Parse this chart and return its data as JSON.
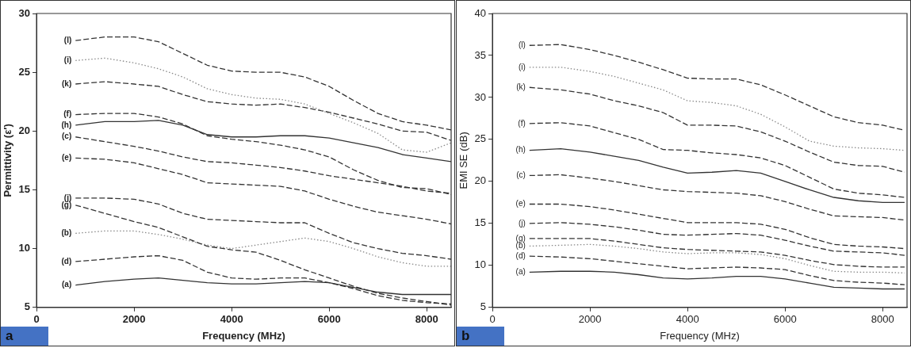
{
  "chart_data": [
    {
      "type": "line",
      "xlabel": "Frequency (MHz)",
      "ylabel": "Permittivity (ε′)",
      "annotations": [
        "a"
      ],
      "xlim": [
        0,
        8500
      ],
      "ylim": [
        5,
        30
      ],
      "xticks": [
        0,
        2000,
        4000,
        6000,
        8000
      ],
      "yticks": [
        5,
        10,
        15,
        20,
        25,
        30
      ],
      "grid": false,
      "legend": false,
      "marker": "none",
      "x": [
        800,
        1400,
        2000,
        2500,
        3000,
        3500,
        4000,
        4500,
        5000,
        5500,
        6000,
        6500,
        7000,
        7500,
        8000,
        8500
      ],
      "series": [
        {
          "name": "(l)",
          "color": "#333333",
          "line_style": "dashed",
          "values": [
            27.7,
            28.0,
            28.0,
            27.6,
            26.6,
            25.6,
            25.1,
            25.0,
            25.0,
            24.6,
            23.8,
            22.6,
            21.5,
            20.8,
            20.5,
            20.1
          ]
        },
        {
          "name": "(i)",
          "color": "#888888",
          "line_style": "dotted",
          "values": [
            26.0,
            26.2,
            25.8,
            25.3,
            24.6,
            23.6,
            23.1,
            22.8,
            22.7,
            22.3,
            21.5,
            20.7,
            19.8,
            18.4,
            18.2,
            19.0
          ]
        },
        {
          "name": "(k)",
          "color": "#333333",
          "line_style": "dashed",
          "values": [
            24.0,
            24.2,
            24.0,
            23.8,
            23.1,
            22.5,
            22.3,
            22.2,
            22.3,
            22.0,
            21.6,
            21.1,
            20.6,
            20.0,
            19.9,
            19.2
          ]
        },
        {
          "name": "(f)",
          "color": "#333333",
          "line_style": "dashed",
          "values": [
            21.4,
            21.5,
            21.5,
            21.2,
            20.6,
            19.6,
            19.3,
            19.1,
            18.8,
            18.4,
            17.8,
            16.7,
            15.8,
            15.2,
            15.1,
            14.6
          ]
        },
        {
          "name": "(h)",
          "color": "#333333",
          "line_style": "solid",
          "values": [
            20.5,
            20.8,
            20.8,
            20.9,
            20.5,
            19.7,
            19.5,
            19.5,
            19.6,
            19.6,
            19.4,
            19.0,
            18.6,
            18.0,
            17.7,
            17.4
          ]
        },
        {
          "name": "(c)",
          "color": "#333333",
          "line_style": "dashed",
          "values": [
            19.5,
            19.1,
            18.7,
            18.3,
            17.8,
            17.4,
            17.3,
            17.1,
            16.9,
            16.6,
            16.2,
            15.9,
            15.6,
            15.3,
            14.9,
            14.7
          ]
        },
        {
          "name": "(e)",
          "color": "#333333",
          "line_style": "dashed",
          "values": [
            17.7,
            17.6,
            17.3,
            16.8,
            16.3,
            15.6,
            15.5,
            15.4,
            15.3,
            14.9,
            14.2,
            13.6,
            13.1,
            12.8,
            12.5,
            12.1
          ]
        },
        {
          "name": "(j)",
          "color": "#333333",
          "line_style": "dashed",
          "values": [
            14.3,
            14.3,
            14.2,
            13.8,
            13.0,
            12.5,
            12.4,
            12.3,
            12.2,
            12.2,
            11.3,
            10.5,
            10.0,
            9.6,
            9.4,
            9.1
          ]
        },
        {
          "name": "(g)",
          "color": "#333333",
          "line_style": "dashed",
          "values": [
            13.7,
            13.0,
            12.3,
            11.8,
            11.0,
            10.2,
            9.9,
            9.7,
            9.0,
            8.2,
            7.5,
            6.8,
            6.2,
            5.8,
            5.5,
            5.2
          ]
        },
        {
          "name": "(b)",
          "color": "#888888",
          "line_style": "dotted",
          "values": [
            11.3,
            11.5,
            11.5,
            11.2,
            10.8,
            10.3,
            10.0,
            10.3,
            10.6,
            10.9,
            10.6,
            10.0,
            9.3,
            8.8,
            8.5,
            8.5
          ]
        },
        {
          "name": "(d)",
          "color": "#333333",
          "line_style": "dashed",
          "values": [
            8.9,
            9.1,
            9.3,
            9.4,
            9.0,
            8.0,
            7.5,
            7.4,
            7.5,
            7.5,
            7.1,
            6.6,
            6.0,
            5.6,
            5.4,
            5.3
          ]
        },
        {
          "name": "(a)",
          "color": "#333333",
          "line_style": "solid",
          "values": [
            6.9,
            7.2,
            7.4,
            7.5,
            7.3,
            7.1,
            7.0,
            7.0,
            7.1,
            7.2,
            7.1,
            6.7,
            6.3,
            6.1,
            6.1,
            6.1
          ]
        }
      ]
    },
    {
      "type": "line",
      "xlabel": "Frequency (MHz)",
      "ylabel": "EMI SE (dB)",
      "annotations": [
        "b"
      ],
      "xlim": [
        0,
        8500
      ],
      "ylim": [
        5,
        40
      ],
      "xticks": [
        0,
        2000,
        4000,
        6000,
        8000
      ],
      "yticks": [
        5,
        10,
        15,
        20,
        25,
        30,
        35,
        40
      ],
      "grid": false,
      "legend": false,
      "marker": "none",
      "x": [
        760,
        1400,
        2000,
        2500,
        3000,
        3500,
        4000,
        4500,
        5000,
        5500,
        6000,
        6500,
        7000,
        7500,
        8000,
        8450
      ],
      "series": [
        {
          "name": "(l)",
          "color": "#333333",
          "line_style": "dashed",
          "values": [
            36.2,
            36.3,
            35.7,
            35.0,
            34.2,
            33.3,
            32.3,
            32.2,
            32.2,
            31.5,
            30.3,
            29.0,
            27.7,
            27.0,
            26.7,
            26.1
          ]
        },
        {
          "name": "(i)",
          "color": "#888888",
          "line_style": "dotted",
          "values": [
            33.6,
            33.6,
            33.1,
            32.5,
            31.7,
            30.9,
            29.6,
            29.4,
            29.0,
            28.0,
            26.5,
            24.8,
            24.2,
            24.0,
            23.9,
            23.7
          ]
        },
        {
          "name": "(k)",
          "color": "#333333",
          "line_style": "dashed",
          "values": [
            31.2,
            30.9,
            30.4,
            29.6,
            29.0,
            28.2,
            26.7,
            26.7,
            26.6,
            25.9,
            24.8,
            23.5,
            22.3,
            21.9,
            21.8,
            21.1
          ]
        },
        {
          "name": "(f)",
          "color": "#333333",
          "line_style": "dashed",
          "values": [
            26.9,
            27.0,
            26.6,
            25.8,
            25.0,
            23.8,
            23.7,
            23.4,
            23.2,
            22.8,
            21.9,
            20.5,
            19.1,
            18.6,
            18.4,
            18.1
          ]
        },
        {
          "name": "(h)",
          "color": "#333333",
          "line_style": "solid",
          "values": [
            23.7,
            23.9,
            23.5,
            23.0,
            22.5,
            21.7,
            21.0,
            21.1,
            21.3,
            21.0,
            20.0,
            19.0,
            18.1,
            17.7,
            17.5,
            17.5
          ]
        },
        {
          "name": "(c)",
          "color": "#333333",
          "line_style": "dashed",
          "values": [
            20.7,
            20.8,
            20.4,
            20.0,
            19.5,
            19.0,
            18.8,
            18.7,
            18.6,
            18.3,
            17.6,
            16.7,
            15.9,
            15.8,
            15.7,
            15.4
          ]
        },
        {
          "name": "(e)",
          "color": "#333333",
          "line_style": "dashed",
          "values": [
            17.3,
            17.3,
            17.0,
            16.6,
            16.1,
            15.6,
            15.1,
            15.1,
            15.1,
            14.9,
            14.3,
            13.3,
            12.5,
            12.3,
            12.2,
            12.0
          ]
        },
        {
          "name": "(j)",
          "color": "#333333",
          "line_style": "dashed",
          "values": [
            15.0,
            15.1,
            14.9,
            14.6,
            14.2,
            13.7,
            13.6,
            13.7,
            13.8,
            13.6,
            13.0,
            12.3,
            11.7,
            11.6,
            11.5,
            11.2
          ]
        },
        {
          "name": "(g)",
          "color": "#333333",
          "line_style": "dashed",
          "values": [
            13.2,
            13.2,
            13.2,
            12.9,
            12.5,
            12.1,
            11.9,
            11.8,
            11.7,
            11.6,
            11.2,
            10.6,
            10.1,
            9.9,
            9.8,
            9.8
          ]
        },
        {
          "name": "(b)",
          "color": "#888888",
          "line_style": "dotted",
          "values": [
            12.3,
            12.4,
            12.5,
            12.3,
            12.0,
            11.6,
            11.4,
            11.5,
            11.5,
            11.3,
            10.8,
            10.0,
            9.3,
            9.2,
            9.2,
            9.1
          ]
        },
        {
          "name": "(d)",
          "color": "#333333",
          "line_style": "dashed",
          "values": [
            11.1,
            11.0,
            10.8,
            10.5,
            10.2,
            9.9,
            9.6,
            9.7,
            9.8,
            9.7,
            9.5,
            8.8,
            8.2,
            8.0,
            7.9,
            7.7
          ]
        },
        {
          "name": "(a)",
          "color": "#333333",
          "line_style": "solid",
          "values": [
            9.2,
            9.3,
            9.3,
            9.2,
            8.9,
            8.5,
            8.4,
            8.5,
            8.7,
            8.7,
            8.4,
            7.9,
            7.4,
            7.3,
            7.2,
            7.2
          ]
        }
      ]
    }
  ]
}
